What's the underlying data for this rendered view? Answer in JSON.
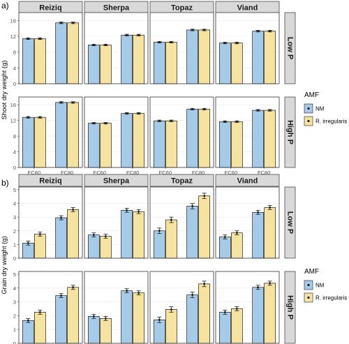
{
  "panel_labels": [
    "a)",
    "b)"
  ],
  "legend": {
    "title": "AMF",
    "entries": [
      {
        "label": "NM",
        "color": "#a6cbe9"
      },
      {
        "label": "R. irregularis",
        "color": "#f6e3a0"
      }
    ]
  },
  "chart_data": [
    {
      "type": "bar",
      "panel": "a)",
      "ylabel": "Shoot dry weight (g)",
      "ylim": [
        0,
        18
      ],
      "yticks": [
        "0",
        "4",
        "8",
        "12",
        "16"
      ],
      "facet_columns": [
        "Reiziq",
        "Sherpa",
        "Topaz",
        "Viand"
      ],
      "facet_rows": [
        "Low P",
        "High P"
      ],
      "categories": [
        "FC60",
        "FC80"
      ],
      "series_names": [
        "NM",
        "R. irregularis"
      ],
      "grid": true,
      "legend_position": "right",
      "values": {
        "Low P": {
          "Reiziq": {
            "NM": [
              11.4,
              15.4
            ],
            "R. irregularis": [
              11.4,
              15.4
            ]
          },
          "Sherpa": {
            "NM": [
              9.8,
              12.3
            ],
            "R. irregularis": [
              9.8,
              12.3
            ]
          },
          "Topaz": {
            "NM": [
              10.5,
              13.6
            ],
            "R. irregularis": [
              10.5,
              13.6
            ]
          },
          "Viand": {
            "NM": [
              10.3,
              13.3
            ],
            "R. irregularis": [
              10.3,
              13.3
            ]
          }
        },
        "High P": {
          "Reiziq": {
            "NM": [
              12.8,
              16.6
            ],
            "R. irregularis": [
              12.8,
              16.6
            ]
          },
          "Sherpa": {
            "NM": [
              11.3,
              13.8
            ],
            "R. irregularis": [
              11.3,
              13.8
            ]
          },
          "Topaz": {
            "NM": [
              11.9,
              14.9
            ],
            "R. irregularis": [
              11.9,
              14.9
            ]
          },
          "Viand": {
            "NM": [
              11.7,
              14.6
            ],
            "R. irregularis": [
              11.7,
              14.6
            ]
          }
        }
      },
      "errors": {
        "Low P": {
          "Reiziq": {
            "NM": [
              0.2,
              0.2
            ],
            "R. irregularis": [
              0.2,
              0.2
            ]
          },
          "Sherpa": {
            "NM": [
              0.2,
              0.2
            ],
            "R. irregularis": [
              0.2,
              0.2
            ]
          },
          "Topaz": {
            "NM": [
              0.2,
              0.2
            ],
            "R. irregularis": [
              0.2,
              0.2
            ]
          },
          "Viand": {
            "NM": [
              0.2,
              0.2
            ],
            "R. irregularis": [
              0.2,
              0.2
            ]
          }
        },
        "High P": {
          "Reiziq": {
            "NM": [
              0.2,
              0.2
            ],
            "R. irregularis": [
              0.2,
              0.2
            ]
          },
          "Sherpa": {
            "NM": [
              0.2,
              0.2
            ],
            "R. irregularis": [
              0.2,
              0.2
            ]
          },
          "Topaz": {
            "NM": [
              0.2,
              0.2
            ],
            "R. irregularis": [
              0.2,
              0.2
            ]
          },
          "Viand": {
            "NM": [
              0.2,
              0.2
            ],
            "R. irregularis": [
              0.2,
              0.2
            ]
          }
        }
      }
    },
    {
      "type": "bar",
      "panel": "b)",
      "ylabel": "Grain dry weight (g)",
      "ylim": [
        0,
        5.2
      ],
      "yticks": [
        "0",
        "1",
        "2",
        "3",
        "4",
        "5"
      ],
      "facet_columns": [
        "Reiziq",
        "Sherpa",
        "Topaz",
        "Viand"
      ],
      "facet_rows": [
        "Low P",
        "High P"
      ],
      "categories": [
        "FC60",
        "FC80"
      ],
      "series_names": [
        "NM",
        "R. irregularis"
      ],
      "grid": true,
      "legend_position": "right",
      "values": {
        "Low P": {
          "Reiziq": {
            "NM": [
              1.1,
              2.95
            ],
            "R. irregularis": [
              1.75,
              3.55
            ]
          },
          "Sherpa": {
            "NM": [
              1.7,
              3.5
            ],
            "R. irregularis": [
              1.6,
              3.4
            ]
          },
          "Topaz": {
            "NM": [
              2.0,
              3.8
            ],
            "R. irregularis": [
              2.8,
              4.55
            ]
          },
          "Viand": {
            "NM": [
              1.55,
              3.35
            ],
            "R. irregularis": [
              1.85,
              3.7
            ]
          }
        },
        "High P": {
          "Reiziq": {
            "NM": [
              1.65,
              3.45
            ],
            "R. irregularis": [
              2.25,
              4.05
            ]
          },
          "Sherpa": {
            "NM": [
              1.95,
              3.8
            ],
            "R. irregularis": [
              1.8,
              3.65
            ]
          },
          "Topaz": {
            "NM": [
              1.7,
              3.5
            ],
            "R. irregularis": [
              2.45,
              4.3
            ]
          },
          "Viand": {
            "NM": [
              2.25,
              4.05
            ],
            "R. irregularis": [
              2.5,
              4.35
            ]
          }
        }
      },
      "errors": {
        "Low P": {
          "Reiziq": {
            "NM": [
              0.15,
              0.15
            ],
            "R. irregularis": [
              0.15,
              0.15
            ]
          },
          "Sherpa": {
            "NM": [
              0.15,
              0.15
            ],
            "R. irregularis": [
              0.15,
              0.15
            ]
          },
          "Topaz": {
            "NM": [
              0.2,
              0.2
            ],
            "R. irregularis": [
              0.2,
              0.2
            ]
          },
          "Viand": {
            "NM": [
              0.15,
              0.15
            ],
            "R. irregularis": [
              0.15,
              0.15
            ]
          }
        },
        "High P": {
          "Reiziq": {
            "NM": [
              0.15,
              0.15
            ],
            "R. irregularis": [
              0.15,
              0.15
            ]
          },
          "Sherpa": {
            "NM": [
              0.15,
              0.15
            ],
            "R. irregularis": [
              0.15,
              0.15
            ]
          },
          "Topaz": {
            "NM": [
              0.2,
              0.2
            ],
            "R. irregularis": [
              0.2,
              0.2
            ]
          },
          "Viand": {
            "NM": [
              0.15,
              0.15
            ],
            "R. irregularis": [
              0.15,
              0.15
            ]
          }
        }
      }
    }
  ]
}
